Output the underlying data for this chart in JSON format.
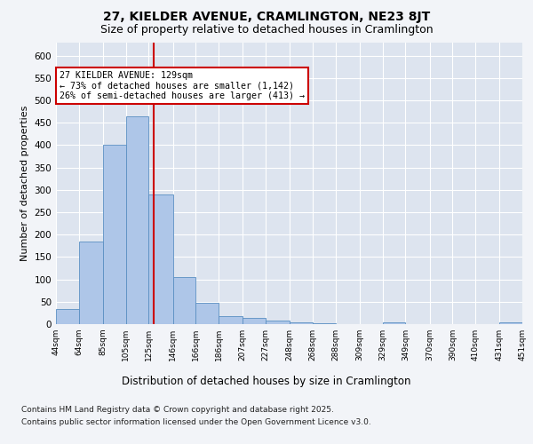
{
  "title": "27, KIELDER AVENUE, CRAMLINGTON, NE23 8JT",
  "subtitle": "Size of property relative to detached houses in Cramlington",
  "xlabel": "Distribution of detached houses by size in Cramlington",
  "ylabel": "Number of detached properties",
  "footer_line1": "Contains HM Land Registry data © Crown copyright and database right 2025.",
  "footer_line2": "Contains public sector information licensed under the Open Government Licence v3.0.",
  "annotation_title": "27 KIELDER AVENUE: 129sqm",
  "annotation_line2": "← 73% of detached houses are smaller (1,142)",
  "annotation_line3": "26% of semi-detached houses are larger (413) →",
  "bar_color": "#aec6e8",
  "bar_edge_color": "#5a8fc2",
  "vline_color": "#cc0000",
  "vline_x": 129,
  "bin_edges": [
    44,
    64,
    85,
    105,
    125,
    146,
    166,
    186,
    207,
    227,
    248,
    268,
    288,
    309,
    329,
    349,
    370,
    390,
    410,
    431,
    451
  ],
  "bar_heights": [
    33,
    185,
    400,
    465,
    290,
    105,
    48,
    18,
    13,
    8,
    3,
    1,
    0,
    0,
    3,
    0,
    0,
    0,
    0,
    3
  ],
  "ylim": [
    0,
    630
  ],
  "yticks": [
    0,
    50,
    100,
    150,
    200,
    250,
    300,
    350,
    400,
    450,
    500,
    550,
    600
  ],
  "background_color": "#f2f4f8",
  "plot_bg_color": "#dde4ef",
  "title_fontsize": 10,
  "subtitle_fontsize": 9,
  "xlabel_fontsize": 8.5,
  "ylabel_fontsize": 8,
  "footer_fontsize": 6.5
}
